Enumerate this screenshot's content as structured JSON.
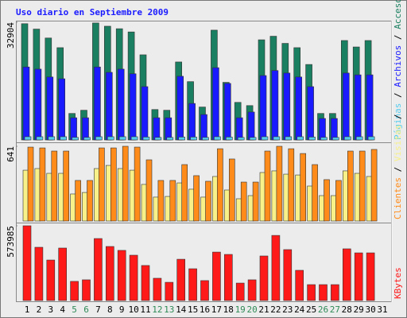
{
  "title": "Uso diario en Septiembre 2009",
  "legend_separator": " / ",
  "chart_data": [
    {
      "type": "bar",
      "ylim": [
        0,
        32904
      ],
      "yticks": [
        32904
      ],
      "series": [
        {
          "name": "Accesos",
          "color": "#1a7f60",
          "values": [
            32500,
            31000,
            28500,
            25800,
            7400,
            8300,
            32700,
            31800,
            31100,
            30200,
            23800,
            8500,
            8300,
            21800,
            16300,
            9200,
            30700,
            16100,
            10500,
            9600,
            28000,
            29000,
            27000,
            25800,
            21100,
            7400,
            7400,
            27800,
            26000,
            27800,
            null
          ]
        },
        {
          "name": "Archivos",
          "color": "#1a1aff",
          "values": [
            20400,
            19800,
            17600,
            17100,
            6200,
            6200,
            20400,
            18900,
            19800,
            18500,
            14900,
            6200,
            6200,
            17800,
            10200,
            7100,
            20200,
            15800,
            6200,
            7800,
            18000,
            19400,
            18700,
            17600,
            14900,
            6000,
            6000,
            18700,
            18200,
            18200,
            null
          ]
        },
        {
          "name": "Páginas",
          "color": "#55ccee",
          "values": [
            900,
            900,
            900,
            900,
            700,
            700,
            900,
            900,
            900,
            900,
            800,
            700,
            700,
            800,
            800,
            700,
            900,
            800,
            700,
            700,
            900,
            900,
            900,
            900,
            800,
            700,
            700,
            900,
            900,
            900,
            null
          ]
        }
      ]
    },
    {
      "type": "bar",
      "ylim": [
        0,
        641
      ],
      "yticks": [
        641
      ],
      "series": [
        {
          "name": "Visitas",
          "color": "#f8f088",
          "values": [
            436,
            450,
            409,
            409,
            232,
            245,
            450,
            477,
            450,
            436,
            314,
            205,
            211,
            327,
            273,
            205,
            382,
            266,
            191,
            218,
            416,
            430,
            402,
            395,
            300,
            218,
            218,
            430,
            409,
            382,
            null
          ]
        },
        {
          "name": "Clientes",
          "color": "#ff8c1a",
          "values": [
            634,
            627,
            600,
            600,
            348,
            348,
            627,
            627,
            641,
            634,
            525,
            348,
            348,
            484,
            389,
            341,
            620,
            532,
            334,
            334,
            600,
            641,
            620,
            579,
            484,
            355,
            348,
            600,
            600,
            614,
            null
          ]
        }
      ]
    },
    {
      "type": "bar",
      "ylim": [
        0,
        573985
      ],
      "yticks": [
        573985
      ],
      "categories": [
        "1",
        "2",
        "3",
        "4",
        "5",
        "6",
        "7",
        "8",
        "9",
        "10",
        "11",
        "12",
        "13",
        "14",
        "15",
        "16",
        "17",
        "18",
        "19",
        "20",
        "21",
        "22",
        "23",
        "24",
        "25",
        "26",
        "27",
        "28",
        "29",
        "30",
        "31"
      ],
      "highlight": [
        4,
        5,
        11,
        12,
        18,
        19,
        25,
        26
      ],
      "highlight_color": "#2e8b57",
      "series": [
        {
          "name": "KBytes",
          "color": "#ff1a1a",
          "values": [
            573985,
            409000,
            311000,
            403000,
            147000,
            159000,
            476000,
            415000,
            385000,
            348000,
            269000,
            171000,
            140000,
            317000,
            244000,
            153000,
            372000,
            354000,
            134000,
            159000,
            342000,
            500000,
            391000,
            232000,
            122000,
            122000,
            122000,
            397000,
            366000,
            366000,
            null
          ]
        }
      ]
    }
  ]
}
